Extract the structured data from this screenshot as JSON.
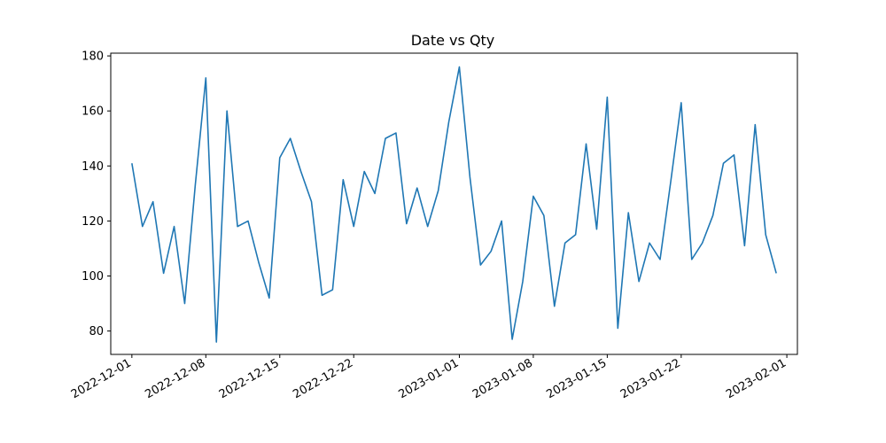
{
  "chart_data": {
    "type": "line",
    "title": "Date vs Qty",
    "xlabel": "",
    "ylabel": "",
    "xlim": [
      "2022-11-29",
      "2023-02-02"
    ],
    "ylim": [
      71.5,
      181
    ],
    "x_ticks": [
      "2022-12-01",
      "2022-12-08",
      "2022-12-15",
      "2022-12-22",
      "2023-01-01",
      "2023-01-08",
      "2023-01-15",
      "2023-01-22",
      "2023-02-01"
    ],
    "y_ticks": [
      80,
      100,
      120,
      140,
      160,
      180
    ],
    "grid": false,
    "legend": "none",
    "color": "#1f77b4",
    "series": [
      {
        "x": [
          "2022-12-01",
          "2022-12-02",
          "2022-12-03",
          "2022-12-04",
          "2022-12-05",
          "2022-12-06",
          "2022-12-07",
          "2022-12-08",
          "2022-12-09",
          "2022-12-10",
          "2022-12-11",
          "2022-12-12",
          "2022-12-13",
          "2022-12-14",
          "2022-12-15",
          "2022-12-16",
          "2022-12-17",
          "2022-12-18",
          "2022-12-19",
          "2022-12-20",
          "2022-12-21",
          "2022-12-22",
          "2022-12-23",
          "2022-12-24",
          "2022-12-25",
          "2022-12-26",
          "2022-12-27",
          "2022-12-28",
          "2022-12-29",
          "2022-12-30",
          "2022-12-31",
          "2023-01-01",
          "2023-01-02",
          "2023-01-03",
          "2023-01-04",
          "2023-01-05",
          "2023-01-06",
          "2023-01-07",
          "2023-01-08",
          "2023-01-09",
          "2023-01-10",
          "2023-01-11",
          "2023-01-12",
          "2023-01-13",
          "2023-01-14",
          "2023-01-15",
          "2023-01-16",
          "2023-01-17",
          "2023-01-18",
          "2023-01-19",
          "2023-01-20",
          "2023-01-21",
          "2023-01-22",
          "2023-01-23",
          "2023-01-24",
          "2023-01-25",
          "2023-01-26",
          "2023-01-27",
          "2023-01-28",
          "2023-01-29",
          "2023-01-30",
          "2023-01-31"
        ],
        "values": [
          141,
          118,
          127,
          101,
          118,
          90,
          133,
          172,
          76,
          160,
          118,
          120,
          105,
          92,
          143,
          150,
          138,
          127,
          93,
          95,
          135,
          118,
          138,
          130,
          150,
          152,
          119,
          132,
          118,
          131,
          156,
          176,
          136,
          104,
          109,
          120,
          77,
          98,
          129,
          122,
          89,
          112,
          115,
          148,
          117,
          165,
          81,
          123,
          98,
          112,
          106,
          134,
          163,
          106,
          112,
          122,
          141,
          144,
          111,
          155,
          115,
          101
        ]
      }
    ]
  }
}
